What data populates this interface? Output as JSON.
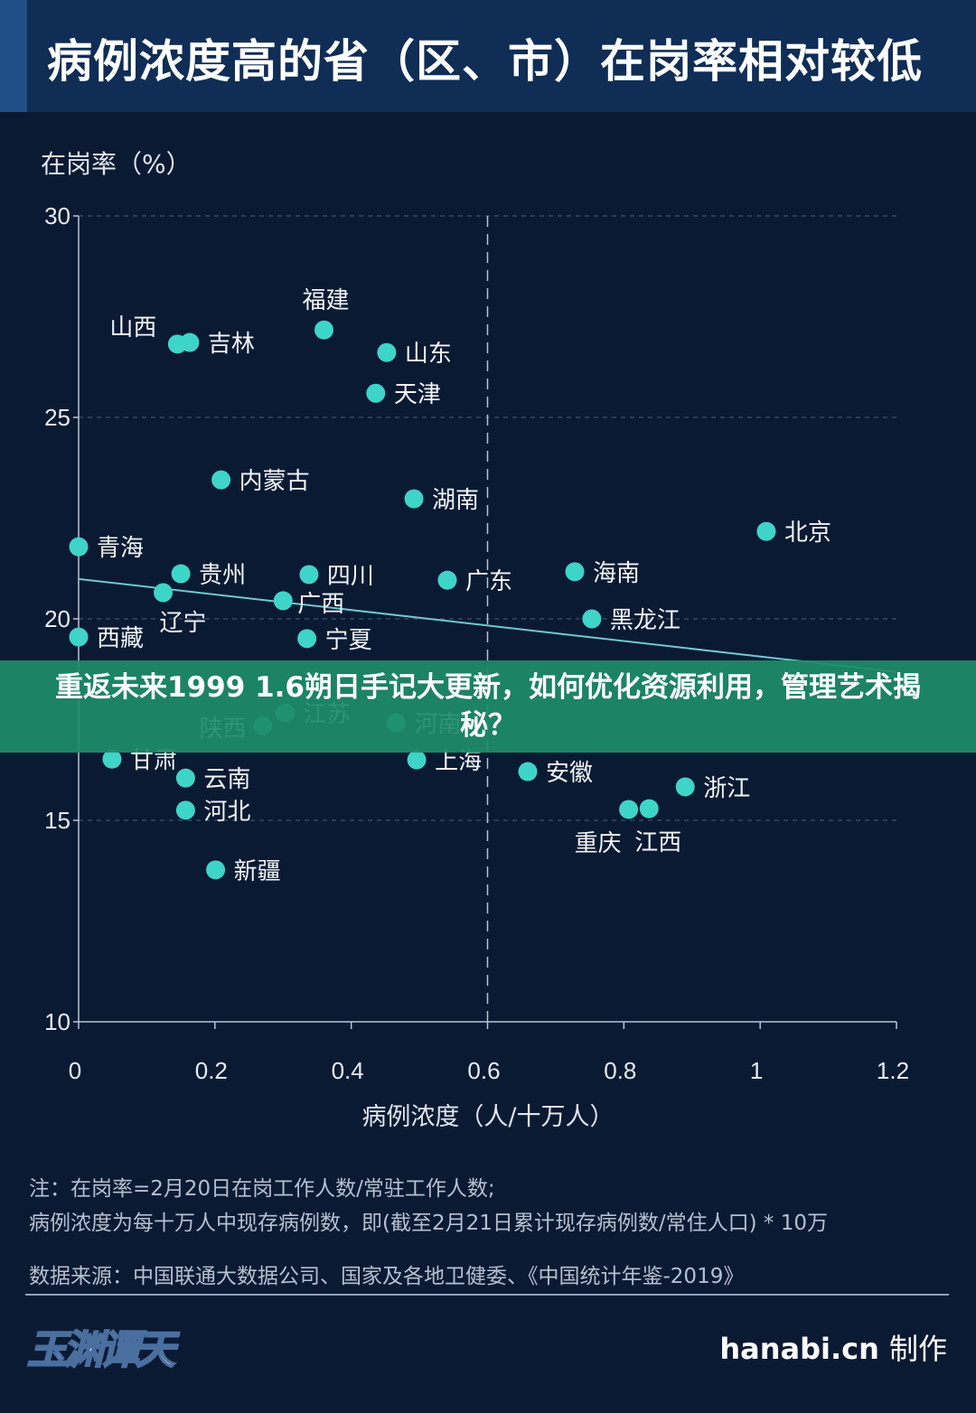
{
  "header": {
    "title": "病例浓度高的省（区、市）在岗率相对较低"
  },
  "chart_data": {
    "type": "scatter",
    "title": "病例浓度高的省（区、市）在岗率相对较低",
    "xlabel": "病例浓度（人/十万人）",
    "ylabel": "在岗率（%）",
    "xlim": [
      0,
      1.2
    ],
    "ylim": [
      10,
      30
    ],
    "xticks": [
      "0",
      "0.2",
      "0.4",
      "0.6",
      "0.8",
      "1",
      "1.2"
    ],
    "yticks": [
      "10",
      "15",
      "20",
      "25",
      "30"
    ],
    "grid": "horizontal dashed",
    "reference_line_x": 0.6,
    "trendline": {
      "x": [
        0,
        1.2
      ],
      "y": [
        20.99,
        18.68
      ]
    },
    "point_color": "#3fd4c8",
    "points": [
      {
        "name": "山西",
        "x": 0.145,
        "y": 26.82
      },
      {
        "name": "吉林",
        "x": 0.163,
        "y": 26.86
      },
      {
        "name": "福建",
        "x": 0.36,
        "y": 27.17
      },
      {
        "name": "山东",
        "x": 0.452,
        "y": 26.61
      },
      {
        "name": "天津",
        "x": 0.436,
        "y": 25.6
      },
      {
        "name": "内蒙古",
        "x": 0.209,
        "y": 23.45
      },
      {
        "name": "湖南",
        "x": 0.492,
        "y": 22.98
      },
      {
        "name": "北京",
        "x": 1.009,
        "y": 22.17
      },
      {
        "name": "青海",
        "x": 0.0,
        "y": 21.79
      },
      {
        "name": "贵州",
        "x": 0.15,
        "y": 21.12
      },
      {
        "name": "四川",
        "x": 0.338,
        "y": 21.1
      },
      {
        "name": "广东",
        "x": 0.541,
        "y": 20.96
      },
      {
        "name": "海南",
        "x": 0.728,
        "y": 21.17
      },
      {
        "name": "辽宁",
        "x": 0.124,
        "y": 20.65
      },
      {
        "name": "广西",
        "x": 0.3,
        "y": 20.45
      },
      {
        "name": "黑龙江",
        "x": 0.753,
        "y": 20.0
      },
      {
        "name": "西藏",
        "x": 0.0,
        "y": 19.55
      },
      {
        "name": "宁夏",
        "x": 0.335,
        "y": 19.51
      },
      {
        "name": "陕西",
        "x": 0.27,
        "y": 17.35
      },
      {
        "name": "江苏",
        "x": 0.303,
        "y": 17.67
      },
      {
        "name": "河南",
        "x": 0.466,
        "y": 17.42
      },
      {
        "name": "甘肃",
        "x": 0.049,
        "y": 16.52
      },
      {
        "name": "上海",
        "x": 0.496,
        "y": 16.5
      },
      {
        "name": "安徽",
        "x": 0.659,
        "y": 16.21
      },
      {
        "name": "浙江",
        "x": 0.89,
        "y": 15.83
      },
      {
        "name": "云南",
        "x": 0.157,
        "y": 16.05
      },
      {
        "name": "河北",
        "x": 0.157,
        "y": 15.25
      },
      {
        "name": "重庆",
        "x": 0.807,
        "y": 15.27
      },
      {
        "name": "江西",
        "x": 0.837,
        "y": 15.29
      },
      {
        "name": "新疆",
        "x": 0.201,
        "y": 13.77
      }
    ]
  },
  "notes": {
    "line1": "注：在岗率=2月20日在岗工作人数/常驻工作人数;",
    "line2": "病例浓度为每十万人中现存病例数，即(截至2月21日累计现存病例数/常住人口) * 10万",
    "source": "数据来源：中国联通大数据公司、国家及各地卫健委、《中国统计年鉴-2019》"
  },
  "footer": {
    "logo": "玉渊谭天",
    "site": "hanabi.cn",
    "made": "制作"
  },
  "banner": {
    "text": "重返未来1999 1.6朔日手记大更新，如何优化资源利用，管理艺术揭秘？"
  }
}
